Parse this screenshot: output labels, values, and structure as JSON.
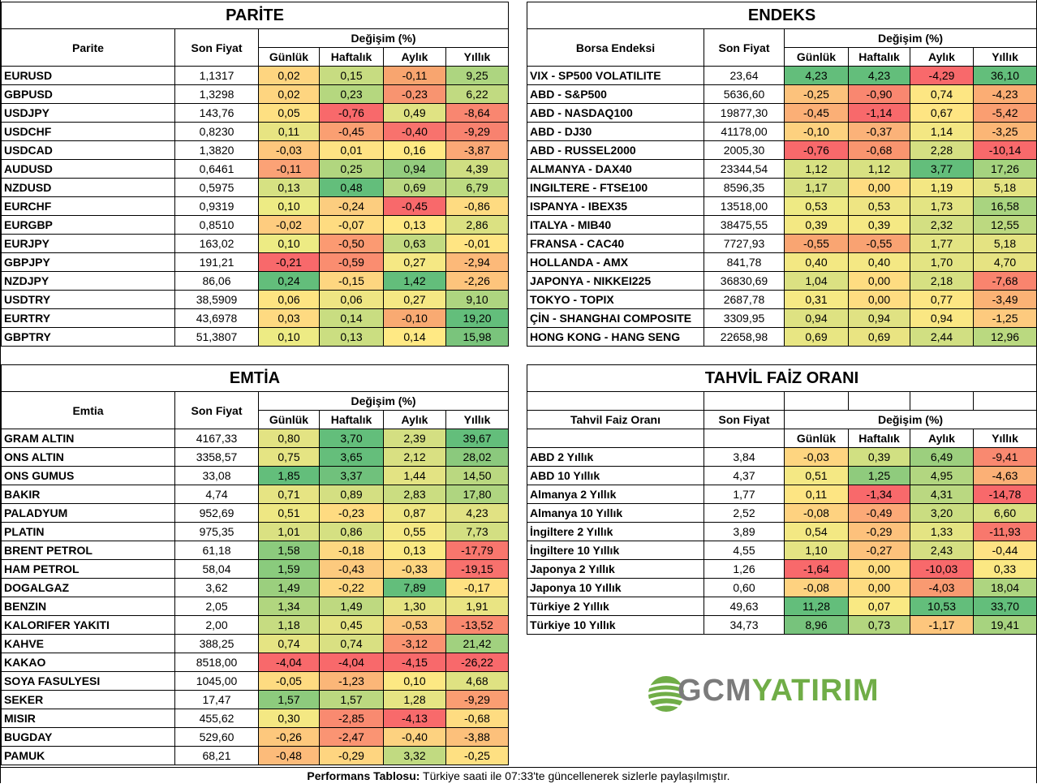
{
  "parite": {
    "title": "PARİTE",
    "col_name": "Parite",
    "col_price": "Son Fiyat",
    "col_change": "Değişim (%)",
    "col_daily": "Günlük",
    "col_weekly": "Haftalık",
    "col_monthly": "Aylık",
    "col_yearly": "Yıllık",
    "rows": [
      {
        "name": "EURUSD",
        "price": "1,1317",
        "d": "0,02",
        "w": "0,15",
        "m": "-0,11",
        "y": "9,25",
        "dc": "#fed580",
        "wc": "#c7dc81",
        "mc": "#f8a56f",
        "yc": "#add580"
      },
      {
        "name": "GBPUSD",
        "price": "1,3298",
        "d": "0,02",
        "w": "0,23",
        "m": "-0,23",
        "y": "6,22",
        "dc": "#fed580",
        "wc": "#b5d77f",
        "mc": "#f89470",
        "yc": "#c1da81"
      },
      {
        "name": "USDJPY",
        "price": "143,76",
        "d": "0,05",
        "w": "-0,76",
        "m": "0,49",
        "y": "-8,64",
        "dc": "#fee082",
        "wc": "#f8696b",
        "mc": "#e0e383",
        "yc": "#f98670"
      },
      {
        "name": "USDCHF",
        "price": "0,8230",
        "d": "0,11",
        "w": "-0,45",
        "m": "-0,40",
        "y": "-9,29",
        "dc": "#e7e482",
        "wc": "#fa9f72",
        "mc": "#f8726d",
        "yc": "#f8826f"
      },
      {
        "name": "USDCAD",
        "price": "1,3820",
        "d": "-0,03",
        "w": "0,01",
        "m": "0,16",
        "y": "-3,87",
        "dc": "#fec77d",
        "wc": "#fee283",
        "mc": "#ffe984",
        "yc": "#fba876"
      },
      {
        "name": "AUDUSD",
        "price": "0,6461",
        "d": "-0,11",
        "w": "0,25",
        "m": "0,94",
        "y": "4,39",
        "dc": "#fba276",
        "wc": "#b1d67f",
        "mc": "#94cd7e",
        "yc": "#cfde82"
      },
      {
        "name": "NZDUSD",
        "price": "0,5975",
        "d": "0,13",
        "w": "0,48",
        "m": "0,69",
        "y": "6,79",
        "dc": "#d6e182",
        "wc": "#63be7b",
        "mc": "#bad882",
        "yc": "#bddb81"
      },
      {
        "name": "EURCHF",
        "price": "0,9319",
        "d": "0,10",
        "w": "-0,24",
        "m": "-0,45",
        "y": "-0,86",
        "dc": "#edeb84",
        "wc": "#fccd7f",
        "mc": "#f8696b",
        "yc": "#fedb81"
      },
      {
        "name": "EURGBP",
        "price": "0,8510",
        "d": "-0,02",
        "w": "-0,07",
        "m": "0,13",
        "y": "2,86",
        "dc": "#fecc7f",
        "wc": "#fedc81",
        "mc": "#ffe884",
        "yc": "#dbe182"
      },
      {
        "name": "EURJPY",
        "price": "163,02",
        "d": "0,10",
        "w": "-0,50",
        "m": "0,63",
        "y": "-0,01",
        "dc": "#edeb84",
        "wc": "#fb9a72",
        "mc": "#c3db81",
        "yc": "#ffe583"
      },
      {
        "name": "GBPJPY",
        "price": "191,21",
        "d": "-0,21",
        "w": "-0,59",
        "m": "0,27",
        "y": "-2,94",
        "dc": "#f8696b",
        "wc": "#fa8d70",
        "mc": "#f5e884",
        "yc": "#fcb979"
      },
      {
        "name": "NZDJPY",
        "price": "86,06",
        "d": "0,24",
        "w": "-0,15",
        "m": "1,42",
        "y": "-2,26",
        "dc": "#63be7b",
        "wc": "#fdd680",
        "mc": "#63be7b",
        "yc": "#fdc47c"
      },
      {
        "name": "USDTRY",
        "price": "38,5909",
        "d": "0,06",
        "w": "0,06",
        "m": "0,27",
        "y": "9,10",
        "dc": "#fee482",
        "wc": "#eee583",
        "mc": "#f5e884",
        "yc": "#aed580"
      },
      {
        "name": "EURTRY",
        "price": "43,6978",
        "d": "0,03",
        "w": "0,14",
        "m": "-0,10",
        "y": "19,20",
        "dc": "#feda81",
        "wc": "#c9dd81",
        "mc": "#f9aa72",
        "yc": "#63be7b"
      },
      {
        "name": "GBPTRY",
        "price": "51,3807",
        "d": "0,10",
        "w": "0,13",
        "m": "0,14",
        "y": "15,98",
        "dc": "#edeb84",
        "wc": "#cbde81",
        "mc": "#ffe984",
        "yc": "#7ac47c"
      }
    ]
  },
  "endeks": {
    "title": "ENDEKS",
    "col_name": "Borsa Endeksi",
    "col_price": "Son Fiyat",
    "col_change": "Değişim (%)",
    "col_daily": "Günlük",
    "col_weekly": "Haftalık",
    "col_monthly": "Aylık",
    "col_yearly": "Yıllık",
    "rows": [
      {
        "name": "VIX  - SP500 VOLATILITE",
        "price": "23,64",
        "d": "4,23",
        "w": "4,23",
        "m": "-4,29",
        "y": "36,10",
        "dc": "#63be7b",
        "wc": "#63be7b",
        "mc": "#f8696b",
        "yc": "#63be7b"
      },
      {
        "name": "ABD - S&P500",
        "price": "5636,60",
        "d": "-0,25",
        "w": "-0,90",
        "m": "0,74",
        "y": "-4,23",
        "dc": "#fcc27c",
        "wc": "#f98770",
        "mc": "#fde683",
        "yc": "#fbad74"
      },
      {
        "name": "ABD - NASDAQ100",
        "price": "19877,30",
        "d": "-0,45",
        "w": "-1,14",
        "m": "0,67",
        "y": "-5,42",
        "dc": "#fbaf76",
        "wc": "#f8696b",
        "mc": "#fee583",
        "yc": "#fa9e71"
      },
      {
        "name": "ABD - DJ30",
        "price": "41178,00",
        "d": "-0,10",
        "w": "-0,37",
        "m": "1,14",
        "y": "-3,25",
        "dc": "#fdd17f",
        "wc": "#fbb279",
        "mc": "#f3e783",
        "yc": "#fbb676"
      },
      {
        "name": "ABD - RUSSEL2000",
        "price": "2005,30",
        "d": "-0,76",
        "w": "-0,68",
        "m": "2,28",
        "y": "-10,14",
        "dc": "#f8696b",
        "wc": "#f9956f",
        "mc": "#d5df82",
        "yc": "#f8696b"
      },
      {
        "name": "ALMANYA - DAX40",
        "price": "23344,54",
        "d": "1,12",
        "w": "1,12",
        "m": "3,77",
        "y": "17,26",
        "dc": "#d8e182",
        "wc": "#d8e182",
        "mc": "#63be7b",
        "yc": "#a5d37f"
      },
      {
        "name": "INGILTERE - FTSE100",
        "price": "8596,35",
        "d": "1,17",
        "w": "0,00",
        "m": "1,19",
        "y": "5,18",
        "dc": "#d7e082",
        "wc": "#fedc81",
        "mc": "#f3e783",
        "yc": "#e4e382"
      },
      {
        "name": "ISPANYA - IBEX35",
        "price": "13518,00",
        "d": "0,53",
        "w": "0,53",
        "m": "1,73",
        "y": "16,58",
        "dc": "#eeea84",
        "wc": "#eee583",
        "mc": "#e3e483",
        "yc": "#a9d480"
      },
      {
        "name": "ITALYA - MIB40",
        "price": "38475,55",
        "d": "0,39",
        "w": "0,39",
        "m": "2,32",
        "y": "12,55",
        "dc": "#f3e883",
        "wc": "#f5e984",
        "mc": "#d3df82",
        "yc": "#bcd980"
      },
      {
        "name": "FRANSA - CAC40",
        "price": "7727,93",
        "d": "-0,55",
        "w": "-0,55",
        "m": "1,77",
        "y": "5,18",
        "dc": "#f9a572",
        "wc": "#f9a272",
        "mc": "#e3e483",
        "yc": "#e4e382"
      },
      {
        "name": "HOLLANDA - AMX",
        "price": "841,78",
        "d": "0,40",
        "w": "0,40",
        "m": "1,70",
        "y": "4,70",
        "dc": "#f3e883",
        "wc": "#f4e884",
        "mc": "#e3e483",
        "yc": "#e6e382"
      },
      {
        "name": "JAPONYA - NIKKEI225",
        "price": "36830,69",
        "d": "1,04",
        "w": "0,00",
        "m": "2,18",
        "y": "-7,68",
        "dc": "#dbe182",
        "wc": "#fedc81",
        "mc": "#d6e082",
        "yc": "#f9846e"
      },
      {
        "name": "TOKYO - TOPIX",
        "price": "2687,78",
        "d": "0,31",
        "w": "0,00",
        "m": "0,77",
        "y": "-3,49",
        "dc": "#f6e984",
        "wc": "#fedc81",
        "mc": "#fde683",
        "yc": "#fbb275"
      },
      {
        "name": "ÇİN - SHANGHAI COMPOSITE",
        "price": "3309,95",
        "d": "0,94",
        "w": "0,94",
        "m": "0,94",
        "y": "-1,25",
        "dc": "#dee282",
        "wc": "#e0e283",
        "mc": "#fae783",
        "yc": "#fdca7e"
      },
      {
        "name": "HONG KONG - HANG SENG",
        "price": "22658,98",
        "d": "0,69",
        "w": "0,69",
        "m": "2,44",
        "y": "12,96",
        "dc": "#e8e683",
        "wc": "#e9e482",
        "mc": "#d1df82",
        "yc": "#bad980"
      }
    ]
  },
  "emtia": {
    "title": "EMTİA",
    "col_name": "Emtia",
    "col_price": "Son Fiyat",
    "col_change": "Değişim (%)",
    "col_daily": "Günlük",
    "col_weekly": "Haftalık",
    "col_monthly": "Aylık",
    "col_yearly": "Yıllık",
    "rows": [
      {
        "name": "GRAM ALTIN",
        "price": "4167,33",
        "d": "0,80",
        "w": "3,70",
        "m": "2,39",
        "y": "39,67",
        "dc": "#e3e383",
        "wc": "#63be7b",
        "mc": "#d4df82",
        "yc": "#63be7b"
      },
      {
        "name": "ONS ALTIN",
        "price": "3358,57",
        "d": "0,75",
        "w": "3,65",
        "m": "2,12",
        "y": "28,02",
        "dc": "#e5e483",
        "wc": "#65be7b",
        "mc": "#d9e082",
        "yc": "#8bc97d"
      },
      {
        "name": "ONS GUMUS",
        "price": "33,08",
        "d": "1,85",
        "w": "3,37",
        "m": "1,44",
        "y": "14,50",
        "dc": "#63be7b",
        "wc": "#70c17c",
        "mc": "#e3e383",
        "yc": "#bad880"
      },
      {
        "name": "BAKIR",
        "price": "4,74",
        "d": "0,71",
        "w": "0,89",
        "m": "2,83",
        "y": "17,80",
        "dc": "#e6e483",
        "wc": "#d4df82",
        "mc": "#cbdd81",
        "yc": "#afd580"
      },
      {
        "name": "PALADYUM",
        "price": "952,69",
        "d": "0,51",
        "w": "-0,23",
        "m": "0,87",
        "y": "4,23",
        "dc": "#eee783",
        "wc": "#fedb81",
        "mc": "#eee683",
        "yc": "#e1e283"
      },
      {
        "name": "PLATIN",
        "price": "975,35",
        "d": "1,01",
        "w": "0,86",
        "m": "0,55",
        "y": "7,73",
        "dc": "#dae182",
        "wc": "#d5e082",
        "mc": "#f4e884",
        "yc": "#d3df82"
      },
      {
        "name": "BRENT PETROL",
        "price": "61,18",
        "d": "1,58",
        "w": "-0,18",
        "m": "0,13",
        "y": "-17,79",
        "dc": "#8ccb7d",
        "wc": "#fdd881",
        "mc": "#fbe983",
        "yc": "#f8766d"
      },
      {
        "name": "HAM PETROL",
        "price": "58,04",
        "d": "1,59",
        "w": "-0,43",
        "m": "-0,33",
        "y": "-19,15",
        "dc": "#8acb7d",
        "wc": "#fcca7e",
        "mc": "#fdd580",
        "yc": "#f8716d"
      },
      {
        "name": "DOGALGAZ",
        "price": "3,62",
        "d": "1,49",
        "w": "-0,22",
        "m": "7,89",
        "y": "-0,17",
        "dc": "#9bcf7e",
        "wc": "#fdd780",
        "mc": "#63be7b",
        "yc": "#fee182"
      },
      {
        "name": "BENZIN",
        "price": "2,05",
        "d": "1,34",
        "w": "1,49",
        "m": "1,30",
        "y": "1,91",
        "dc": "#b1d67f",
        "wc": "#bed980",
        "mc": "#e6e483",
        "yc": "#e9e483"
      },
      {
        "name": "KALORIFER YAKITI",
        "price": "2,00",
        "d": "1,18",
        "w": "0,45",
        "m": "-0,53",
        "y": "-13,52",
        "dc": "#c6dc81",
        "wc": "#e4e382",
        "mc": "#fcc57d",
        "yc": "#f9896f"
      },
      {
        "name": "KAHVE",
        "price": "388,25",
        "d": "0,74",
        "w": "0,74",
        "m": "-3,12",
        "y": "21,42",
        "dc": "#e5e483",
        "wc": "#d9e082",
        "mc": "#fa9371",
        "yc": "#a1d17f"
      },
      {
        "name": "KAKAO",
        "price": "8518,00",
        "d": "-4,04",
        "w": "-4,04",
        "m": "-4,15",
        "y": "-26,22",
        "dc": "#f8696b",
        "wc": "#f8696b",
        "mc": "#f8696b",
        "yc": "#f8696b"
      },
      {
        "name": "SOYA FASULYESI",
        "price": "1045,00",
        "d": "-0,05",
        "w": "-1,23",
        "m": "0,10",
        "y": "4,68",
        "dc": "#fedb81",
        "wc": "#fbb678",
        "mc": "#fce883",
        "yc": "#dfe282"
      },
      {
        "name": "SEKER",
        "price": "17,47",
        "d": "1,57",
        "w": "1,57",
        "m": "1,28",
        "y": "-9,29",
        "dc": "#8dcb7d",
        "wc": "#bbd880",
        "mc": "#e6e483",
        "yc": "#fa9d72"
      },
      {
        "name": "MISIR",
        "price": "455,62",
        "d": "0,30",
        "w": "-2,85",
        "m": "-4,13",
        "y": "-0,68",
        "dc": "#f4e883",
        "wc": "#f98a70",
        "mc": "#f86a6b",
        "yc": "#fedc81"
      },
      {
        "name": "BUGDAY",
        "price": "529,60",
        "d": "-0,26",
        "w": "-2,47",
        "m": "-0,40",
        "y": "-3,88",
        "dc": "#fdc87d",
        "wc": "#fa9473",
        "mc": "#fdd280",
        "yc": "#fcc07b"
      },
      {
        "name": "PAMUK",
        "price": "68,21",
        "d": "-0,48",
        "w": "-0,29",
        "m": "3,32",
        "y": "-0,25",
        "dc": "#fcbb7a",
        "wc": "#fed580",
        "mc": "#c1da81",
        "yc": "#fee082"
      }
    ]
  },
  "tahvil": {
    "title": "TAHVİL FAİZ ORANI",
    "col_name": "Tahvil Faiz Oranı",
    "col_price": "Son Fiyat",
    "col_change": "Değişim (%)",
    "col_daily": "Günlük",
    "col_weekly": "Haftalık",
    "col_monthly": "Aylık",
    "col_yearly": "Yıllık",
    "rows": [
      {
        "name": "ABD 2 Yıllık",
        "price": "3,84",
        "d": "-0,03",
        "w": "0,39",
        "m": "6,49",
        "y": "-9,41",
        "dc": "#fed580",
        "wc": "#d1e082",
        "mc": "#9ccf7e",
        "yc": "#f98970"
      },
      {
        "name": "ABD 10 Yıllık",
        "price": "4,37",
        "d": "0,51",
        "w": "1,25",
        "m": "4,95",
        "y": "-4,63",
        "dc": "#f4e884",
        "wc": "#8fcb7d",
        "mc": "#b2d680",
        "yc": "#fbb076"
      },
      {
        "name": "Almanya 2 Yıllık",
        "price": "1,77",
        "d": "0,11",
        "w": "-1,34",
        "m": "4,31",
        "y": "-14,78",
        "dc": "#fde583",
        "wc": "#f8696b",
        "mc": "#bad881",
        "yc": "#f8696b"
      },
      {
        "name": "Almanya 10 Yıllık",
        "price": "2,52",
        "d": "-0,08",
        "w": "-0,49",
        "m": "3,20",
        "y": "6,60",
        "dc": "#fed280",
        "wc": "#fca977",
        "mc": "#cadd81",
        "yc": "#d8e182"
      },
      {
        "name": "İngiltere 2 Yıllık",
        "price": "3,89",
        "d": "0,54",
        "w": "-0,29",
        "m": "1,33",
        "y": "-11,93",
        "dc": "#f3e883",
        "wc": "#fdc17c",
        "mc": "#e4e483",
        "yc": "#f8786d"
      },
      {
        "name": "İngiltere 10 Yıllık",
        "price": "4,55",
        "d": "1,10",
        "w": "-0,27",
        "m": "2,43",
        "y": "-0,44",
        "dc": "#e4e483",
        "wc": "#fdc27c",
        "mc": "#d5df82",
        "yc": "#fee283"
      },
      {
        "name": "Japonya 2 Yıllık",
        "price": "1,26",
        "d": "-1,64",
        "w": "0,00",
        "m": "-10,03",
        "y": "0,33",
        "dc": "#f8696b",
        "wc": "#fedc81",
        "mc": "#f8696b",
        "yc": "#fbe883"
      },
      {
        "name": "Japonya 10 Yıllık",
        "price": "0,60",
        "d": "-0,08",
        "w": "0,00",
        "m": "-4,03",
        "y": "18,04",
        "dc": "#fed280",
        "wc": "#fedc81",
        "mc": "#f99a71",
        "yc": "#aed580"
      },
      {
        "name": "Türkiye 2 Yıllık",
        "price": "49,63",
        "d": "11,28",
        "w": "0,07",
        "m": "10,53",
        "y": "33,70",
        "dc": "#63be7b",
        "wc": "#f9e983",
        "mc": "#63be7b",
        "yc": "#63be7b"
      },
      {
        "name": "Türkiye 10 Yıllık",
        "price": "34,73",
        "d": "8,96",
        "w": "0,73",
        "m": "-1,17",
        "y": "19,41",
        "dc": "#77c37c",
        "wc": "#b3d67f",
        "mc": "#fdc67d",
        "yc": "#a7d37f"
      }
    ]
  },
  "logo": {
    "part1": "GCM",
    "part2": "YATIRIM"
  },
  "footer": {
    "bold": "Performans Tablosu:",
    "text": " Türkiye saati ile 07:33'te güncellenerek sizlerle paylaşılmıştır."
  }
}
